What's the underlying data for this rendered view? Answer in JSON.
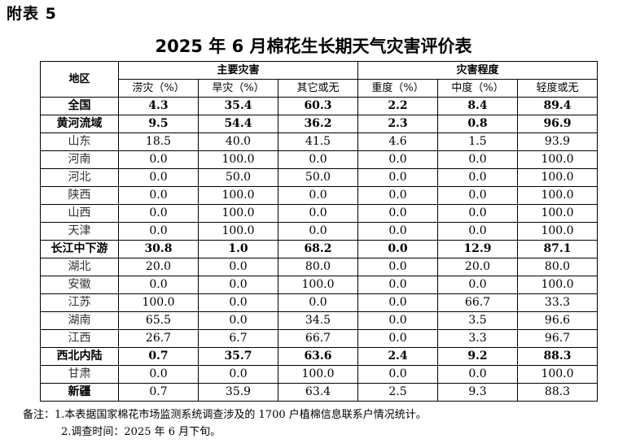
{
  "appendix_label": "附表 5",
  "title": "2025 年 6 月棉花生长期天气灾害评价表",
  "header": {
    "region": "地区",
    "group_main": "主要灾害",
    "group_degree": "灾害程度",
    "cols": [
      "涝灾（%）",
      "旱灾（%）",
      "其它或无",
      "重度（%）",
      "中度（%）",
      "轻度或无"
    ]
  },
  "rows": [
    {
      "name": "全国",
      "bold": true,
      "values": [
        "4.3",
        "35.4",
        "60.3",
        "2.2",
        "8.4",
        "89.4"
      ]
    },
    {
      "name": "黄河流域",
      "bold": true,
      "values": [
        "9.5",
        "54.4",
        "36.2",
        "2.3",
        "0.8",
        "96.9"
      ]
    },
    {
      "name": "山东",
      "bold": false,
      "values": [
        "18.5",
        "40.0",
        "41.5",
        "4.6",
        "1.5",
        "93.9"
      ]
    },
    {
      "name": "河南",
      "bold": false,
      "values": [
        "0.0",
        "100.0",
        "0.0",
        "0.0",
        "0.0",
        "100.0"
      ]
    },
    {
      "name": "河北",
      "bold": false,
      "values": [
        "0.0",
        "50.0",
        "50.0",
        "0.0",
        "0.0",
        "100.0"
      ]
    },
    {
      "name": "陕西",
      "bold": false,
      "values": [
        "0.0",
        "100.0",
        "0.0",
        "0.0",
        "0.0",
        "100.0"
      ]
    },
    {
      "name": "山西",
      "bold": false,
      "values": [
        "0.0",
        "100.0",
        "0.0",
        "0.0",
        "0.0",
        "100.0"
      ]
    },
    {
      "name": "天津",
      "bold": false,
      "values": [
        "0.0",
        "100.0",
        "0.0",
        "0.0",
        "0.0",
        "100.0"
      ]
    },
    {
      "name": "长江中下游",
      "bold": true,
      "values": [
        "30.8",
        "1.0",
        "68.2",
        "0.0",
        "12.9",
        "87.1"
      ]
    },
    {
      "name": "湖北",
      "bold": false,
      "values": [
        "20.0",
        "0.0",
        "80.0",
        "0.0",
        "20.0",
        "80.0"
      ]
    },
    {
      "name": "安徽",
      "bold": false,
      "values": [
        "0.0",
        "0.0",
        "100.0",
        "0.0",
        "0.0",
        "100.0"
      ]
    },
    {
      "name": "江苏",
      "bold": false,
      "values": [
        "100.0",
        "0.0",
        "0.0",
        "0.0",
        "66.7",
        "33.3"
      ]
    },
    {
      "name": "湖南",
      "bold": false,
      "values": [
        "65.5",
        "0.0",
        "34.5",
        "0.0",
        "3.5",
        "96.6"
      ]
    },
    {
      "name": "江西",
      "bold": false,
      "values": [
        "26.7",
        "6.7",
        "66.7",
        "0.0",
        "3.3",
        "96.7"
      ]
    },
    {
      "name": "西北内陆",
      "bold": true,
      "values": [
        "0.7",
        "35.7",
        "63.6",
        "2.4",
        "9.2",
        "88.3"
      ]
    },
    {
      "name": "甘肃",
      "bold": false,
      "values": [
        "0.0",
        "0.0",
        "100.0",
        "0.0",
        "0.0",
        "100.0"
      ]
    },
    {
      "name": "新疆",
      "bold": false,
      "name_bold": true,
      "values": [
        "0.7",
        "35.9",
        "63.4",
        "2.5",
        "9.3",
        "88.3"
      ]
    }
  ],
  "notes": {
    "line1": "备注：1.本表据国家棉花市场监测系统调查涉及的 1700 户植棉信息联系户情况统计。",
    "line2": "2.调查时间：2025 年 6 月下旬。"
  }
}
